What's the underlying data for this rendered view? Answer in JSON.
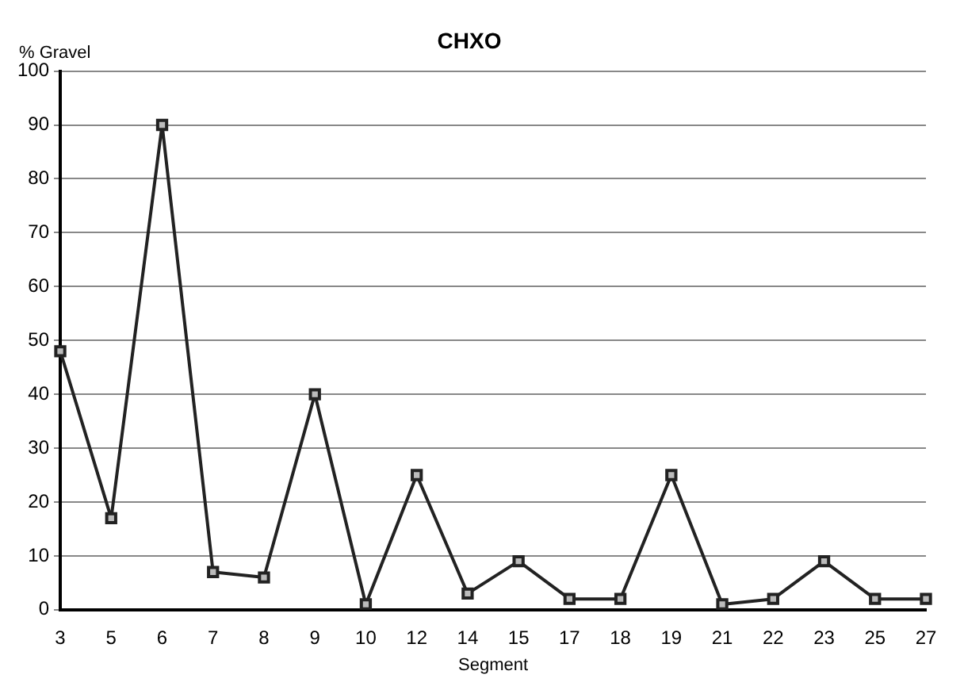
{
  "chart_data": {
    "type": "line",
    "title": "CHXO",
    "xlabel": "Segment",
    "ylabel": "% Gravel",
    "categories": [
      "3",
      "5",
      "6",
      "7",
      "8",
      "9",
      "10",
      "12",
      "14",
      "15",
      "17",
      "18",
      "19",
      "21",
      "22",
      "23",
      "25",
      "27"
    ],
    "series": [
      {
        "color": "#222222",
        "values": [
          48,
          17,
          90,
          7,
          6,
          40,
          1,
          25,
          3,
          9,
          2,
          2,
          25,
          1,
          2,
          9,
          2,
          2
        ]
      }
    ],
    "ylim": [
      0,
      100
    ],
    "yticks": [
      0,
      10,
      20,
      30,
      40,
      50,
      60,
      70,
      80,
      90,
      100
    ],
    "grid": "y",
    "legend": false,
    "marker": "square",
    "line_style": "solid"
  }
}
